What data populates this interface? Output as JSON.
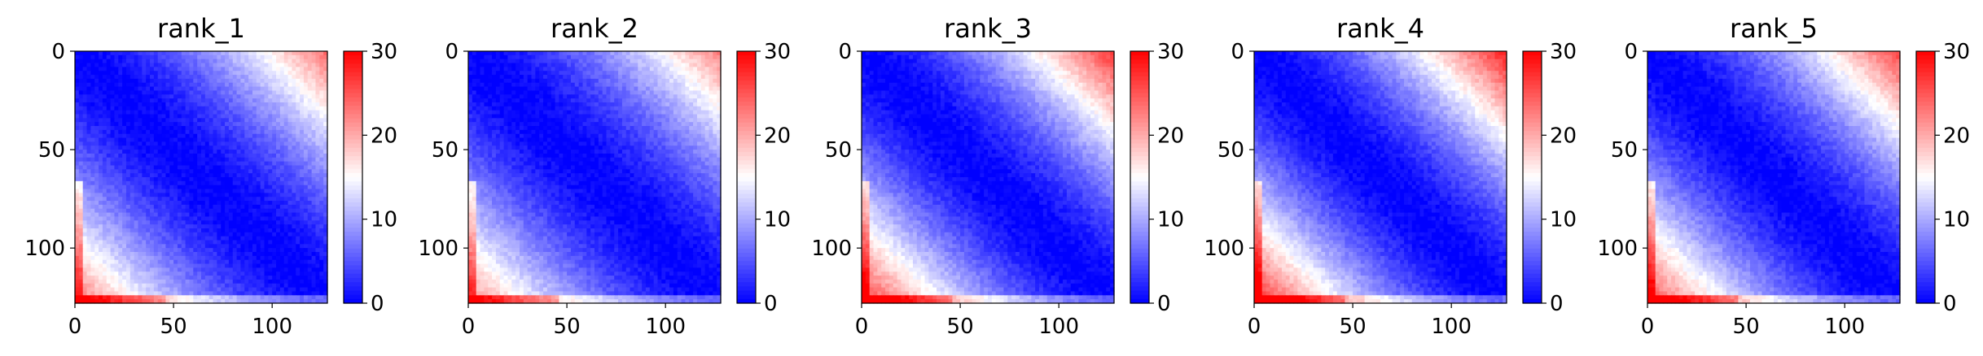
{
  "chart_data": [
    {
      "type": "heatmap",
      "title": "rank_1",
      "x_ticks": [
        "0",
        "50",
        "100"
      ],
      "y_ticks": [
        "0",
        "50",
        "100"
      ],
      "xlim": [
        0,
        128
      ],
      "ylim": [
        128,
        0
      ],
      "colorbar": {
        "ticks": [
          "0",
          "10",
          "20",
          "30"
        ],
        "range": [
          0,
          30
        ],
        "cmap": [
          "#0000ff",
          "#ffffff",
          "#ff0000"
        ]
      },
      "pattern": {
        "max_distance": 30,
        "corner_strength": 1.0
      }
    },
    {
      "type": "heatmap",
      "title": "rank_2",
      "x_ticks": [
        "0",
        "50",
        "100"
      ],
      "y_ticks": [
        "0",
        "50",
        "100"
      ],
      "xlim": [
        0,
        128
      ],
      "ylim": [
        128,
        0
      ],
      "colorbar": {
        "ticks": [
          "0",
          "10",
          "20",
          "30"
        ],
        "range": [
          0,
          30
        ],
        "cmap": [
          "#0000ff",
          "#ffffff",
          "#ff0000"
        ]
      },
      "pattern": {
        "max_distance": 30,
        "corner_strength": 0.95
      }
    },
    {
      "type": "heatmap",
      "title": "rank_3",
      "x_ticks": [
        "0",
        "50",
        "100"
      ],
      "y_ticks": [
        "0",
        "50",
        "100"
      ],
      "xlim": [
        0,
        128
      ],
      "ylim": [
        128,
        0
      ],
      "colorbar": {
        "ticks": [
          "0",
          "10",
          "20",
          "30"
        ],
        "range": [
          0,
          30
        ],
        "cmap": [
          "#0000ff",
          "#ffffff",
          "#ff0000"
        ]
      },
      "pattern": {
        "max_distance": 30,
        "corner_strength": 1.15
      }
    },
    {
      "type": "heatmap",
      "title": "rank_4",
      "x_ticks": [
        "0",
        "50",
        "100"
      ],
      "y_ticks": [
        "0",
        "50",
        "100"
      ],
      "xlim": [
        0,
        128
      ],
      "ylim": [
        128,
        0
      ],
      "colorbar": {
        "ticks": [
          "0",
          "10",
          "20",
          "30"
        ],
        "range": [
          0,
          30
        ],
        "cmap": [
          "#0000ff",
          "#ffffff",
          "#ff0000"
        ]
      },
      "pattern": {
        "max_distance": 30,
        "corner_strength": 1.2
      }
    },
    {
      "type": "heatmap",
      "title": "rank_5",
      "x_ticks": [
        "0",
        "50",
        "100"
      ],
      "y_ticks": [
        "0",
        "50",
        "100"
      ],
      "xlim": [
        0,
        128
      ],
      "ylim": [
        128,
        0
      ],
      "colorbar": {
        "ticks": [
          "0",
          "10",
          "20",
          "30"
        ],
        "range": [
          0,
          30
        ],
        "cmap": [
          "#0000ff",
          "#ffffff",
          "#ff0000"
        ]
      },
      "pattern": {
        "max_distance": 30,
        "corner_strength": 1.1
      }
    }
  ]
}
